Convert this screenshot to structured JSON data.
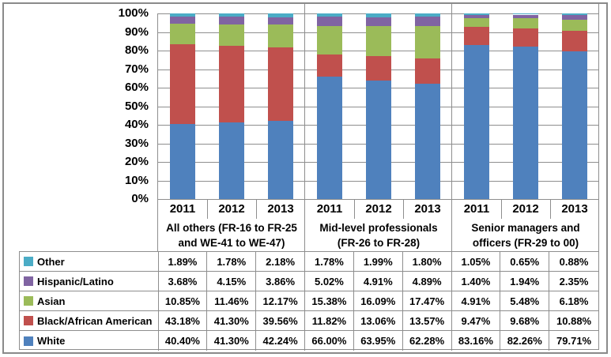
{
  "chart_data": {
    "type": "bar",
    "stacked": true,
    "unit": "percent",
    "title": "",
    "y_axis": {
      "min": 0,
      "max": 100,
      "ticks": [
        "0%",
        "10%",
        "20%",
        "30%",
        "40%",
        "50%",
        "60%",
        "70%",
        "80%",
        "90%",
        "100%"
      ],
      "grid": true
    },
    "years": [
      "2011",
      "2012",
      "2013"
    ],
    "groups": [
      {
        "label": "All others (FR-16 to FR-25 and WE-41 to WE-47)",
        "label_lines": [
          "All others (FR-16 to FR-25",
          "and WE-41 to WE-47)"
        ]
      },
      {
        "label": "Mid-level professionals (FR-26 to FR-28)",
        "label_lines": [
          "Mid-level professionals",
          "(FR-26 to FR-28)"
        ]
      },
      {
        "label": "Senior managers and officers (FR-29 to 00)",
        "label_lines": [
          "Senior managers and",
          "officers (FR-29 to 00)"
        ]
      }
    ],
    "series": [
      {
        "name": "White",
        "color": "#4F81BD",
        "values": [
          [
            40.4,
            41.3,
            42.24
          ],
          [
            66.0,
            63.95,
            62.28
          ],
          [
            83.16,
            82.26,
            79.71
          ]
        ]
      },
      {
        "name": "Black/African American",
        "color": "#C0504D",
        "values": [
          [
            43.18,
            41.3,
            39.56
          ],
          [
            11.82,
            13.06,
            13.57
          ],
          [
            9.47,
            9.68,
            10.88
          ]
        ]
      },
      {
        "name": "Asian",
        "color": "#9BBB59",
        "values": [
          [
            10.85,
            11.46,
            12.17
          ],
          [
            15.38,
            16.09,
            17.47
          ],
          [
            4.91,
            5.48,
            6.18
          ]
        ]
      },
      {
        "name": "Hispanic/Latino",
        "color": "#8064A2",
        "values": [
          [
            3.68,
            4.15,
            3.86
          ],
          [
            5.02,
            4.91,
            4.89
          ],
          [
            1.4,
            1.94,
            2.35
          ]
        ]
      },
      {
        "name": "Other",
        "color": "#4BACC6",
        "values": [
          [
            1.89,
            1.78,
            2.18
          ],
          [
            1.78,
            1.99,
            1.8
          ],
          [
            1.05,
            0.65,
            0.88
          ]
        ]
      }
    ],
    "table_row_order_top_to_bottom": [
      "Other",
      "Hispanic/Latino",
      "Asian",
      "Black/African American",
      "White"
    ],
    "value_format": "0.00%",
    "colors": {
      "grid": "#8e8e8e",
      "border": "#8a8a8a",
      "text": "#000000"
    }
  }
}
